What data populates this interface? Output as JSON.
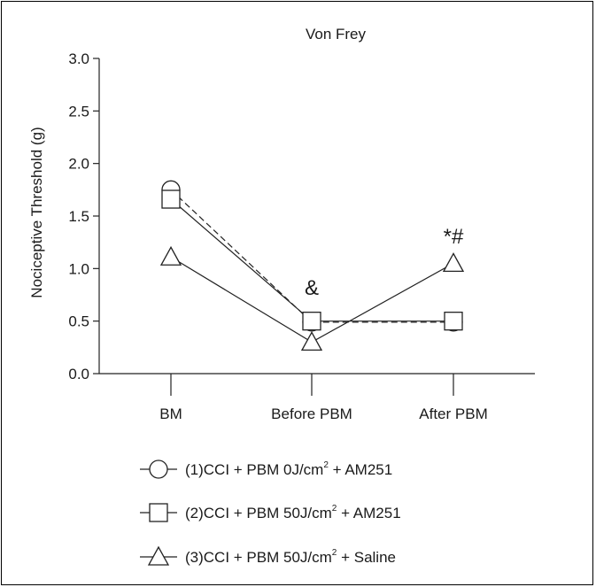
{
  "chart_data": {
    "type": "line",
    "title": "Von Frey",
    "xlabel": "",
    "ylabel": "Nociceptive Threshold (g)",
    "categories": [
      "BM",
      "Before PBM",
      "After PBM"
    ],
    "ylim": [
      0.0,
      3.0
    ],
    "yticks": [
      "0.0",
      "0.5",
      "1.0",
      "1.5",
      "2.0",
      "2.5",
      "3.0"
    ],
    "grid": false,
    "legend_position": "bottom",
    "series": [
      {
        "name_main": "(1)CCI + PBM 0J/cm",
        "name_sup": "2",
        "name_tail": " + AM251",
        "values": [
          1.75,
          0.49,
          0.49
        ],
        "marker": "circle",
        "line_style": "dashed"
      },
      {
        "name_main": "(2)CCI + PBM 50J/cm",
        "name_sup": "2",
        "name_tail": " + AM251",
        "values": [
          1.66,
          0.5,
          0.5
        ],
        "marker": "square",
        "line_style": "solid"
      },
      {
        "name_main": "(3)CCI + PBM 50J/cm",
        "name_sup": "2",
        "name_tail": " + Saline",
        "values": [
          1.11,
          0.3,
          1.05
        ],
        "marker": "triangle",
        "line_style": "solid"
      }
    ],
    "annotations": [
      {
        "text": "&",
        "category": "Before PBM",
        "y": 0.75
      },
      {
        "text": "*#",
        "category": "After PBM",
        "y": 1.24
      }
    ]
  }
}
